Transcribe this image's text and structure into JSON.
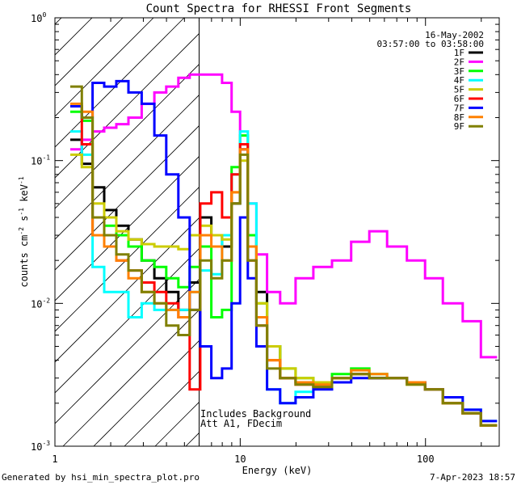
{
  "chart_data": {
    "type": "line",
    "title": "Count Spectra for RHESSI Front Segments",
    "xlabel": "Energy (keV)",
    "ylabel_main": "counts cm",
    "ylabel_exp1": "-2",
    "ylabel_mid": " s",
    "ylabel_exp2": "-1",
    "ylabel_end": " keV",
    "ylabel_exp3": "-1",
    "x_scale": "log",
    "y_scale": "log",
    "xlim": [
      1,
      250
    ],
    "ylim": [
      0.001,
      1
    ],
    "x_ticks": [
      {
        "value": 1,
        "label": "1"
      },
      {
        "value": 10,
        "label": "10"
      },
      {
        "value": 100,
        "label": "100"
      }
    ],
    "y_ticks": [
      {
        "value": 1,
        "base": "10",
        "exp": "0"
      },
      {
        "value": 0.1,
        "base": "10",
        "exp": "-1"
      },
      {
        "value": 0.01,
        "base": "10",
        "exp": "-2"
      },
      {
        "value": 0.001,
        "base": "10",
        "exp": "-3"
      }
    ],
    "date": "16-May-2002",
    "time_range": "03:57:00 to 03:58:00",
    "hatched_region_max_keV": 6,
    "annotations": [
      "Includes Background",
      "Att A1, FDecim"
    ],
    "footer_left": "Generated by hsi_min_spectra_plot.pro",
    "footer_right": "7-Apr-2023 18:57",
    "series": [
      {
        "name": "1F",
        "color": "#000000",
        "x": [
          1.3,
          1.5,
          1.7,
          2,
          2.3,
          2.7,
          3.2,
          3.7,
          4.3,
          5,
          5.7,
          6.5,
          7.5,
          8.5,
          9.5,
          10.5,
          11.5,
          13,
          15,
          18,
          22,
          28,
          35,
          45,
          55,
          70,
          90,
          110,
          140,
          180,
          220
        ],
        "y": [
          0.14,
          0.095,
          0.065,
          0.045,
          0.035,
          0.028,
          0.02,
          0.015,
          0.012,
          0.009,
          0.014,
          0.04,
          0.03,
          0.025,
          0.05,
          0.12,
          0.03,
          0.012,
          0.005,
          0.003,
          0.0028,
          0.0026,
          0.003,
          0.0032,
          0.003,
          0.003,
          0.0028,
          0.0025,
          0.002,
          0.0017,
          0.0014
        ]
      },
      {
        "name": "2F",
        "color": "#ff00ff",
        "x": [
          1.3,
          1.5,
          1.7,
          2,
          2.3,
          2.7,
          3.2,
          3.7,
          4.3,
          5,
          5.7,
          6.5,
          7.5,
          8.5,
          9.5,
          10.5,
          11.5,
          13,
          15,
          18,
          22,
          28,
          35,
          45,
          55,
          70,
          90,
          110,
          140,
          180,
          220
        ],
        "y": [
          0.12,
          0.14,
          0.16,
          0.17,
          0.18,
          0.2,
          0.25,
          0.3,
          0.33,
          0.38,
          0.4,
          0.4,
          0.4,
          0.35,
          0.22,
          0.12,
          0.05,
          0.022,
          0.012,
          0.01,
          0.015,
          0.018,
          0.02,
          0.027,
          0.032,
          0.025,
          0.02,
          0.015,
          0.01,
          0.0075,
          0.0042
        ]
      },
      {
        "name": "3F",
        "color": "#00ff00",
        "x": [
          1.3,
          1.5,
          1.7,
          2,
          2.3,
          2.7,
          3.2,
          3.7,
          4.3,
          5,
          5.7,
          6.5,
          7.5,
          8.5,
          9.5,
          10.5,
          11.5,
          13,
          15,
          18,
          22,
          28,
          35,
          45,
          55,
          70,
          90,
          110,
          140,
          180,
          220
        ],
        "y": [
          0.22,
          0.19,
          0.04,
          0.035,
          0.03,
          0.025,
          0.02,
          0.018,
          0.015,
          0.013,
          0.018,
          0.025,
          0.008,
          0.009,
          0.09,
          0.15,
          0.03,
          0.01,
          0.005,
          0.0035,
          0.003,
          0.0028,
          0.0032,
          0.0035,
          0.0032,
          0.003,
          0.0028,
          0.0025,
          0.002,
          0.0017,
          0.0014
        ]
      },
      {
        "name": "4F",
        "color": "#00ffff",
        "x": [
          1.3,
          1.5,
          1.7,
          2,
          2.3,
          2.7,
          3.2,
          3.7,
          4.3,
          5,
          5.7,
          6.5,
          7.5,
          8.5,
          9.5,
          10.5,
          11.5,
          13,
          15,
          18,
          22,
          28,
          35,
          45,
          55,
          70,
          90,
          110,
          140,
          180,
          220
        ],
        "y": [
          0.16,
          0.11,
          0.018,
          0.012,
          0.012,
          0.008,
          0.01,
          0.009,
          0.009,
          0.009,
          0.012,
          0.017,
          0.016,
          0.03,
          0.08,
          0.16,
          0.05,
          0.008,
          0.0025,
          0.002,
          0.0024,
          0.0026,
          0.003,
          0.0032,
          0.003,
          0.003,
          0.0028,
          0.0025,
          0.0022,
          0.0018,
          0.0015
        ]
      },
      {
        "name": "5F",
        "color": "#cccc00",
        "x": [
          1.3,
          1.5,
          1.7,
          2,
          2.3,
          2.7,
          3.2,
          3.7,
          4.3,
          5,
          5.7,
          6.5,
          7.5,
          8.5,
          9.5,
          10.5,
          11.5,
          13,
          15,
          18,
          22,
          28,
          35,
          45,
          55,
          70,
          90,
          110,
          140,
          180,
          220
        ],
        "y": [
          0.11,
          0.09,
          0.05,
          0.04,
          0.032,
          0.028,
          0.026,
          0.025,
          0.025,
          0.024,
          0.03,
          0.035,
          0.03,
          0.028,
          0.06,
          0.1,
          0.025,
          0.01,
          0.005,
          0.0035,
          0.003,
          0.0028,
          0.003,
          0.0032,
          0.003,
          0.003,
          0.0027,
          0.0025,
          0.002,
          0.0017,
          0.0014
        ]
      },
      {
        "name": "6F",
        "color": "#ff0000",
        "x": [
          1.3,
          1.5,
          1.7,
          2,
          2.3,
          2.7,
          3.2,
          3.7,
          4.3,
          5,
          5.7,
          6.5,
          7.5,
          8.5,
          9.5,
          10.5,
          11.5,
          13,
          15,
          18,
          22,
          28,
          35,
          45,
          55,
          70,
          90,
          110,
          140,
          180,
          220
        ],
        "y": [
          0.24,
          0.13,
          0.03,
          0.025,
          0.02,
          0.017,
          0.014,
          0.012,
          0.01,
          0.008,
          0.0025,
          0.05,
          0.06,
          0.04,
          0.08,
          0.13,
          0.02,
          0.007,
          0.004,
          0.003,
          0.0027,
          0.0026,
          0.003,
          0.0032,
          0.003,
          0.003,
          0.0028,
          0.0025,
          0.002,
          0.0017,
          0.0014
        ]
      },
      {
        "name": "7F",
        "color": "#0000ff",
        "x": [
          1.3,
          1.5,
          1.7,
          2,
          2.3,
          2.7,
          3.2,
          3.7,
          4.3,
          5,
          5.7,
          6.5,
          7.5,
          8.5,
          9.5,
          10.5,
          11.5,
          13,
          15,
          18,
          22,
          28,
          35,
          45,
          55,
          70,
          90,
          110,
          140,
          180,
          220
        ],
        "y": [
          0.24,
          0.2,
          0.35,
          0.33,
          0.36,
          0.3,
          0.25,
          0.15,
          0.08,
          0.04,
          0.009,
          0.005,
          0.003,
          0.0035,
          0.01,
          0.04,
          0.015,
          0.005,
          0.0025,
          0.002,
          0.0022,
          0.0025,
          0.0028,
          0.003,
          0.003,
          0.003,
          0.0028,
          0.0025,
          0.0022,
          0.0018,
          0.0015
        ]
      },
      {
        "name": "8F",
        "color": "#ff8000",
        "x": [
          1.3,
          1.5,
          1.7,
          2,
          2.3,
          2.7,
          3.2,
          3.7,
          4.3,
          5,
          5.7,
          6.5,
          7.5,
          8.5,
          9.5,
          10.5,
          11.5,
          13,
          15,
          18,
          22,
          28,
          35,
          45,
          55,
          70,
          90,
          110,
          140,
          180,
          220
        ],
        "y": [
          0.25,
          0.22,
          0.03,
          0.025,
          0.02,
          0.015,
          0.012,
          0.01,
          0.009,
          0.008,
          0.012,
          0.03,
          0.025,
          0.02,
          0.06,
          0.12,
          0.025,
          0.008,
          0.004,
          0.003,
          0.0028,
          0.0027,
          0.003,
          0.0034,
          0.0032,
          0.003,
          0.0028,
          0.0025,
          0.002,
          0.0017,
          0.0014
        ]
      },
      {
        "name": "9F",
        "color": "#808000",
        "x": [
          1.3,
          1.5,
          1.7,
          2,
          2.3,
          2.7,
          3.2,
          3.7,
          4.3,
          5,
          5.7,
          6.5,
          7.5,
          8.5,
          9.5,
          10.5,
          11.5,
          13,
          15,
          18,
          22,
          28,
          35,
          45,
          55,
          70,
          90,
          110,
          140,
          180,
          220
        ],
        "y": [
          0.33,
          0.2,
          0.04,
          0.03,
          0.022,
          0.017,
          0.012,
          0.01,
          0.007,
          0.006,
          0.009,
          0.02,
          0.015,
          0.02,
          0.05,
          0.11,
          0.02,
          0.007,
          0.0035,
          0.003,
          0.0027,
          0.0026,
          0.003,
          0.0032,
          0.003,
          0.003,
          0.0027,
          0.0025,
          0.002,
          0.0017,
          0.0014
        ]
      }
    ]
  }
}
